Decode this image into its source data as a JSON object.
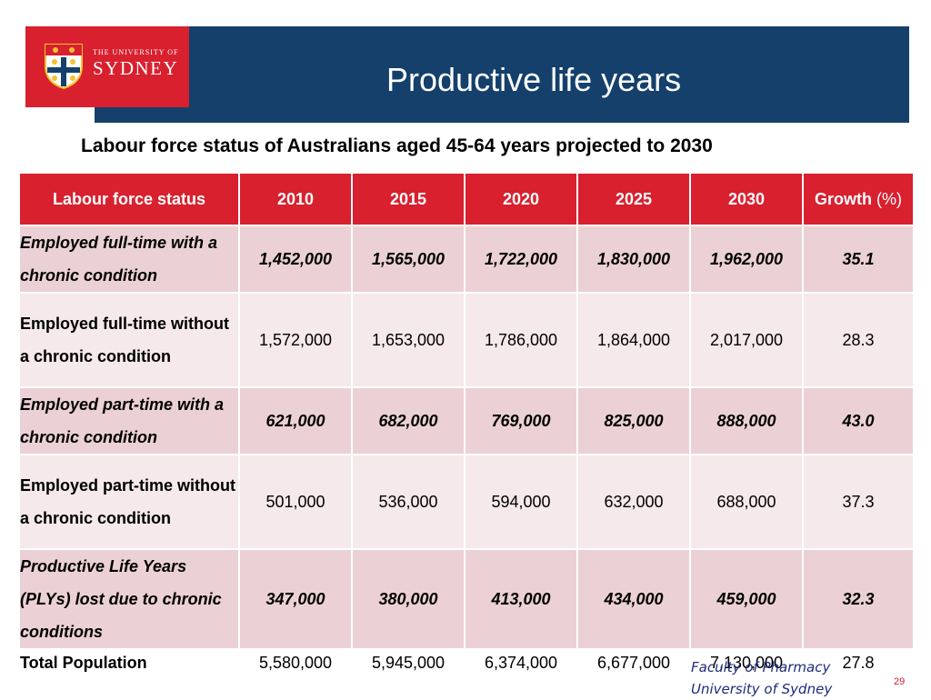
{
  "logo": {
    "line1": "THE UNIVERSITY OF",
    "line2": "SYDNEY"
  },
  "title": "Productive life years",
  "subtitle": "Labour force status of Australians aged 45-64 years projected to 2030",
  "table": {
    "headers": [
      "Labour force status",
      "2010",
      "2015",
      "2020",
      "2025",
      "2030",
      "Growth",
      "(%)"
    ],
    "rows": [
      {
        "label": "Employed full-time with a chronic condition",
        "values": [
          "1,452,000",
          "1,565,000",
          "1,722,000",
          "1,830,000",
          "1,962,000",
          "35.1"
        ]
      },
      {
        "label": "Employed full-time without a chronic condition",
        "values": [
          "1,572,000",
          "1,653,000",
          "1,786,000",
          "1,864,000",
          "2,017,000",
          "28.3"
        ]
      },
      {
        "label": "Employed part-time with a chronic condition",
        "values": [
          "621,000",
          "682,000",
          "769,000",
          "825,000",
          "888,000",
          "43.0"
        ]
      },
      {
        "label": "Employed part-time without a chronic condition",
        "values": [
          "501,000",
          "536,000",
          "594,000",
          "632,000",
          "688,000",
          "37.3"
        ]
      },
      {
        "label": "Productive Life Years (PLYs) lost due to chronic conditions",
        "values": [
          "347,000",
          "380,000",
          "413,000",
          "434,000",
          "459,000",
          "32.3"
        ]
      },
      {
        "label": "Total Population",
        "values": [
          "5,580,000",
          "5,945,000",
          "6,374,000",
          "6,677,000",
          "7,130,000",
          "27.8"
        ]
      }
    ]
  },
  "footer": {
    "line1": "Faculty of Pharmacy",
    "line2": "University of Sydney"
  },
  "page_number": "29",
  "colors": {
    "navy": "#14406b",
    "red": "#d8202f",
    "row_dark": "#ebd1d5",
    "row_light": "#f5e9eb",
    "footer_text": "#1e2c7a"
  }
}
